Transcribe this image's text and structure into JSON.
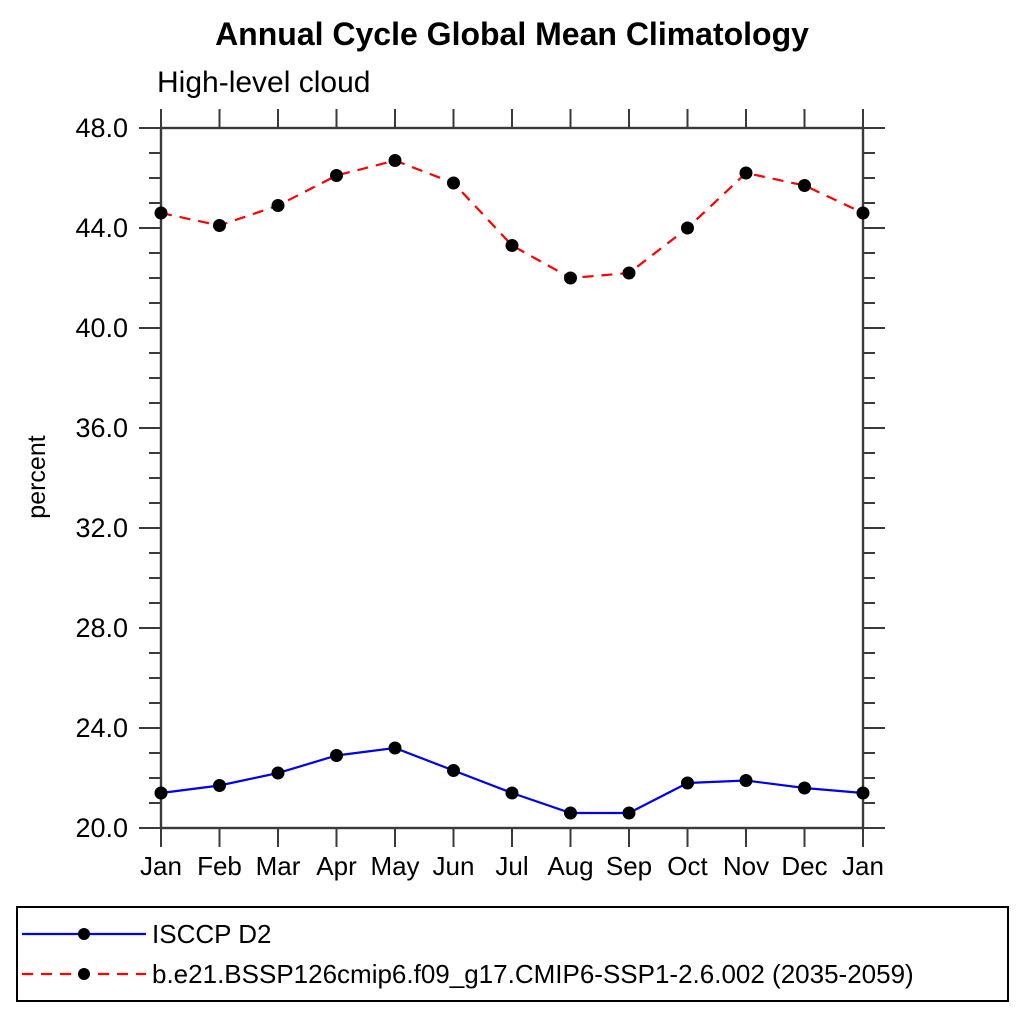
{
  "chart_data": {
    "type": "line",
    "title": "Annual Cycle Global Mean Climatology",
    "subtitle": "High-level cloud",
    "ylabel": "percent",
    "x_categories": [
      "Jan",
      "Feb",
      "Mar",
      "Apr",
      "May",
      "Jun",
      "Jul",
      "Aug",
      "Sep",
      "Oct",
      "Nov",
      "Dec",
      "Jan"
    ],
    "ylim": [
      20.0,
      48.0
    ],
    "y_major_ticks": [
      20,
      24,
      28,
      32,
      36,
      40,
      44,
      48
    ],
    "y_tick_labels": [
      "20.0",
      "24.0",
      "28.0",
      "32.0",
      "36.0",
      "40.0",
      "44.0",
      "48.0"
    ],
    "y_minor_step": 1,
    "grid": false,
    "legend_position": "bottom-left",
    "axis_color": "#3a3a3a",
    "marker_color": "#000000",
    "series": [
      {
        "name": "ISCCP D2",
        "color": "#0000ee",
        "line_style": "solid",
        "marker": "circle",
        "values": [
          21.4,
          21.7,
          22.2,
          22.9,
          23.2,
          22.3,
          21.4,
          20.6,
          20.6,
          21.8,
          21.9,
          21.6,
          21.4
        ]
      },
      {
        "name": "b.e21.BSSP126cmip6.f09_g17.CMIP6-SSP1-2.6.002 (2035-2059)",
        "color": "#ff0000",
        "line_style": "dashed",
        "marker": "circle",
        "values": [
          44.6,
          44.1,
          44.9,
          46.1,
          46.7,
          45.8,
          43.3,
          42.0,
          42.2,
          44.0,
          46.2,
          45.7,
          44.6
        ]
      }
    ]
  }
}
